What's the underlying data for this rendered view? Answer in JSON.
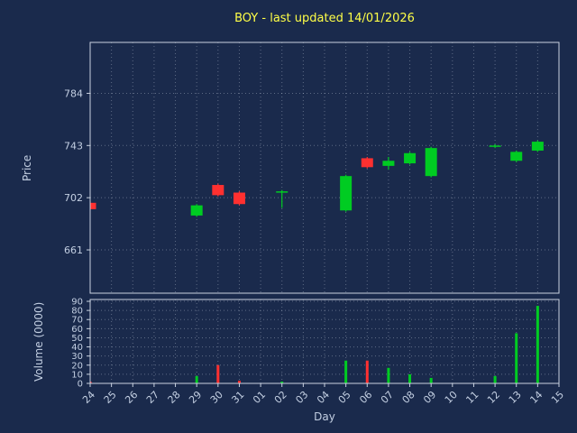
{
  "title": "BOY - last updated 14/01/2026",
  "colors": {
    "background": "#1a2a4c",
    "title": "#ffff47",
    "text": "#c3cfe2",
    "spine": "#c9d2e0",
    "grid": "#dce4f0",
    "up": "#00cc22",
    "down": "#ff3030"
  },
  "chart_data": {
    "type": "candlestick",
    "title": "BOY - last updated 14/01/2026",
    "price_axis": {
      "label": "Price",
      "ticks": [
        784,
        743,
        702,
        661
      ],
      "ylim": [
        627,
        824
      ],
      "grid": true
    },
    "volume_axis": {
      "label": "Volume (0000)",
      "ticks": [
        0,
        10,
        20,
        30,
        40,
        50,
        60,
        70,
        80,
        90
      ],
      "ylim": [
        0,
        92
      ],
      "grid": true
    },
    "x_axis": {
      "label": "Day",
      "categories": [
        "24",
        "25",
        "26",
        "27",
        "28",
        "29",
        "30",
        "31",
        "01",
        "02",
        "03",
        "04",
        "05",
        "06",
        "07",
        "08",
        "09",
        "10",
        "11",
        "12",
        "13",
        "14",
        "15"
      ]
    },
    "candles": [
      {
        "day": "24",
        "open": 698,
        "high": 699,
        "low": 692,
        "close": 693,
        "color": "down",
        "volume": 2
      },
      {
        "day": "29",
        "open": 688,
        "high": 697,
        "low": 687,
        "close": 696,
        "color": "up",
        "volume": 8
      },
      {
        "day": "30",
        "open": 712,
        "high": 713,
        "low": 703,
        "close": 704,
        "color": "down",
        "volume": 20
      },
      {
        "day": "31",
        "open": 706,
        "high": 707,
        "low": 696,
        "close": 697,
        "color": "down",
        "volume": 3
      },
      {
        "day": "02",
        "open": 707,
        "high": 708,
        "low": 694,
        "close": 707,
        "color": "up",
        "volume": 2
      },
      {
        "day": "05",
        "open": 692,
        "high": 720,
        "low": 691,
        "close": 719,
        "color": "up",
        "volume": 25
      },
      {
        "day": "06",
        "open": 733,
        "high": 734,
        "low": 725,
        "close": 726,
        "color": "down",
        "volume": 25
      },
      {
        "day": "07",
        "open": 727,
        "high": 734,
        "low": 724,
        "close": 731,
        "color": "up",
        "volume": 17
      },
      {
        "day": "08",
        "open": 729,
        "high": 738,
        "low": 728,
        "close": 737,
        "color": "up",
        "volume": 10
      },
      {
        "day": "09",
        "open": 719,
        "high": 742,
        "low": 718,
        "close": 741,
        "color": "up",
        "volume": 6
      },
      {
        "day": "12",
        "open": 743,
        "high": 744,
        "low": 741,
        "close": 743,
        "color": "up",
        "volume": 8
      },
      {
        "day": "13",
        "open": 731,
        "high": 739,
        "low": 730,
        "close": 738,
        "color": "up",
        "volume": 55
      },
      {
        "day": "14",
        "open": 739,
        "high": 747,
        "low": 738,
        "close": 746,
        "color": "up",
        "volume": 85
      }
    ]
  }
}
